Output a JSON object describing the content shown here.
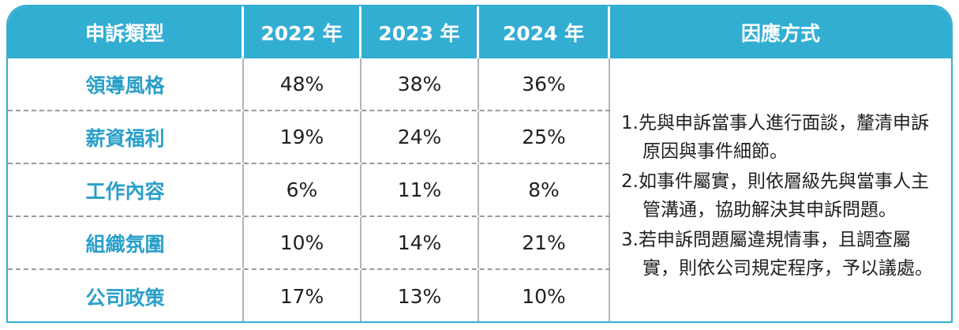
{
  "headers": [
    "申訴類型",
    "2022 年",
    "2023 年",
    "2024 年",
    "因應方式"
  ],
  "rows": [
    {
      "category": "領導風格",
      "y2022": "48%",
      "y2023": "38%",
      "y2024": "36%"
    },
    {
      "category": "薪資福利",
      "y2022": "19%",
      "y2023": "24%",
      "y2024": "25%"
    },
    {
      "category": "工作內容",
      "y2022": "6%",
      "y2023": "11%",
      "y2024": "8%"
    },
    {
      "category": "組織氛圍",
      "y2022": "10%",
      "y2023": "14%",
      "y2024": "21%"
    },
    {
      "category": "公司政策",
      "y2022": "17%",
      "y2023": "13%",
      "y2024": "10%"
    }
  ],
  "response": [
    "1.先與申訴當事人進行面談，釐清申訴原因與事件細節。",
    "2.如事件屬實，則依層級先與當事人主管溝通，協助解決其申訴問題。",
    "3.若申訴問題屬違規情事，且調查屬實，則依公司規定程序，予以議處。"
  ],
  "colors": {
    "header_bg": "#33aed3",
    "category_text": "#2a9fc9",
    "border": "#33aed3"
  }
}
